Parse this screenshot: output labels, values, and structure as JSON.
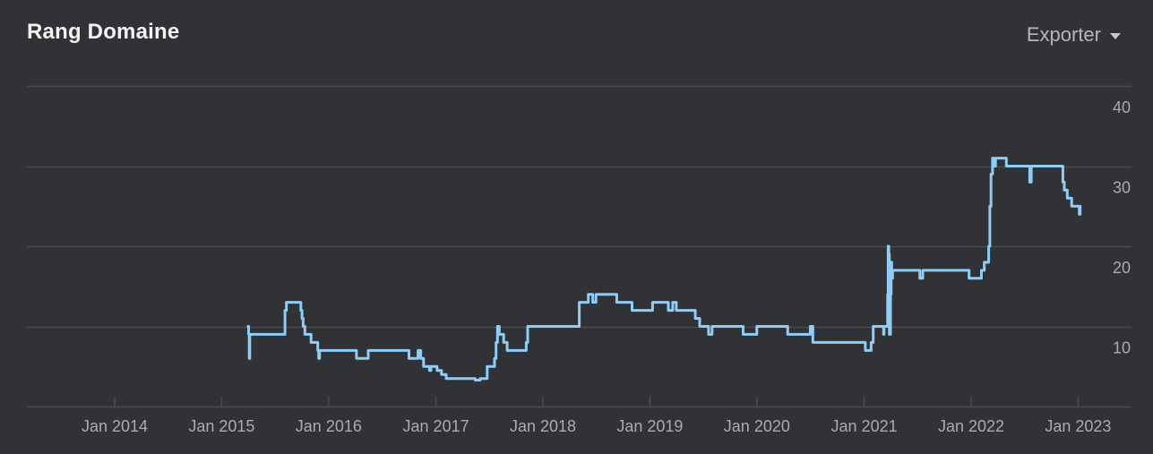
{
  "card": {
    "title": "Rang Domaine",
    "export_label": "Exporter"
  },
  "colors": {
    "background": "#313235",
    "line": "#8ecdf7",
    "grid": "#4a4b4f",
    "tick_text": "#a9abaf"
  },
  "chart_data": {
    "type": "line",
    "title": "Rang Domaine",
    "xlabel": "",
    "ylabel": "",
    "xlim": [
      "2013-03-01",
      "2023-03-01"
    ],
    "ylim": [
      0,
      40
    ],
    "x_tick_labels": [
      "Jan 2014",
      "Jan 2015",
      "Jan 2016",
      "Jan 2017",
      "Jan 2018",
      "Jan 2019",
      "Jan 2020",
      "Jan 2021",
      "Jan 2022",
      "Jan 2023"
    ],
    "y_ticks": [
      10,
      20,
      30,
      40
    ],
    "y_axis_side": "right",
    "grid": "horizontal",
    "legend": "none",
    "series": [
      {
        "style": "step",
        "points": [
          [
            "2015-04-01",
            10
          ],
          [
            "2015-04-03",
            9
          ],
          [
            "2015-04-05",
            6
          ],
          [
            "2015-04-07",
            9
          ],
          [
            "2015-08-01",
            9
          ],
          [
            "2015-08-05",
            12
          ],
          [
            "2015-08-10",
            13
          ],
          [
            "2015-09-25",
            13
          ],
          [
            "2015-09-28",
            12
          ],
          [
            "2015-10-02",
            11
          ],
          [
            "2015-10-06",
            10
          ],
          [
            "2015-10-12",
            9
          ],
          [
            "2015-10-25",
            9
          ],
          [
            "2015-11-02",
            8
          ],
          [
            "2015-11-20",
            8
          ],
          [
            "2015-11-25",
            7
          ],
          [
            "2015-11-28",
            6
          ],
          [
            "2015-12-01",
            7
          ],
          [
            "2016-04-01",
            7
          ],
          [
            "2016-04-05",
            6
          ],
          [
            "2016-05-10",
            6
          ],
          [
            "2016-05-15",
            7
          ],
          [
            "2016-09-25",
            7
          ],
          [
            "2016-10-01",
            6
          ],
          [
            "2016-10-25",
            6
          ],
          [
            "2016-11-01",
            7
          ],
          [
            "2016-11-10",
            6
          ],
          [
            "2016-11-20",
            5
          ],
          [
            "2016-12-10",
            4.5
          ],
          [
            "2016-12-15",
            5
          ],
          [
            "2017-01-05",
            4.5
          ],
          [
            "2017-01-20",
            4
          ],
          [
            "2017-02-05",
            3.5
          ],
          [
            "2017-05-01",
            3.5
          ],
          [
            "2017-05-15",
            3.3
          ],
          [
            "2017-06-01",
            3.5
          ],
          [
            "2017-06-20",
            3.5
          ],
          [
            "2017-06-25",
            5
          ],
          [
            "2017-07-15",
            5
          ],
          [
            "2017-07-20",
            6
          ],
          [
            "2017-07-25",
            8
          ],
          [
            "2017-07-30",
            10
          ],
          [
            "2017-08-05",
            9
          ],
          [
            "2017-08-20",
            8
          ],
          [
            "2017-09-01",
            7
          ],
          [
            "2017-11-01",
            7
          ],
          [
            "2017-11-05",
            8
          ],
          [
            "2017-11-10",
            10
          ],
          [
            "2018-05-01",
            10
          ],
          [
            "2018-05-05",
            13
          ],
          [
            "2018-06-01",
            13
          ],
          [
            "2018-06-05",
            14
          ],
          [
            "2018-06-20",
            13
          ],
          [
            "2018-07-01",
            14
          ],
          [
            "2018-09-05",
            14
          ],
          [
            "2018-09-10",
            13
          ],
          [
            "2018-10-25",
            13
          ],
          [
            "2018-11-01",
            12
          ],
          [
            "2019-01-05",
            12
          ],
          [
            "2019-01-10",
            13
          ],
          [
            "2019-03-01",
            13
          ],
          [
            "2019-03-05",
            12
          ],
          [
            "2019-03-20",
            13
          ],
          [
            "2019-04-01",
            12
          ],
          [
            "2019-06-01",
            12
          ],
          [
            "2019-06-05",
            11
          ],
          [
            "2019-06-20",
            10
          ],
          [
            "2019-07-15",
            10
          ],
          [
            "2019-07-20",
            9
          ],
          [
            "2019-08-01",
            10
          ],
          [
            "2019-11-10",
            10
          ],
          [
            "2019-11-15",
            9
          ],
          [
            "2019-12-25",
            9
          ],
          [
            "2020-01-01",
            10
          ],
          [
            "2020-04-10",
            10
          ],
          [
            "2020-04-15",
            9
          ],
          [
            "2020-06-25",
            9
          ],
          [
            "2020-07-01",
            10
          ],
          [
            "2020-07-10",
            8
          ],
          [
            "2021-01-01",
            8
          ],
          [
            "2021-01-05",
            7
          ],
          [
            "2021-01-20",
            7
          ],
          [
            "2021-01-25",
            8
          ],
          [
            "2021-02-01",
            10
          ],
          [
            "2021-03-05",
            10
          ],
          [
            "2021-03-08",
            9
          ],
          [
            "2021-03-10",
            10
          ],
          [
            "2021-03-20",
            10
          ],
          [
            "2021-03-22",
            14
          ],
          [
            "2021-03-24",
            20
          ],
          [
            "2021-03-26",
            19
          ],
          [
            "2021-03-28",
            9
          ],
          [
            "2021-04-01",
            14
          ],
          [
            "2021-04-03",
            18
          ],
          [
            "2021-04-05",
            16
          ],
          [
            "2021-04-08",
            17
          ],
          [
            "2021-07-05",
            17
          ],
          [
            "2021-07-10",
            16
          ],
          [
            "2021-07-20",
            17
          ],
          [
            "2021-12-20",
            17
          ],
          [
            "2021-12-25",
            16
          ],
          [
            "2022-02-01",
            16
          ],
          [
            "2022-02-05",
            17
          ],
          [
            "2022-02-15",
            18
          ],
          [
            "2022-02-25",
            18
          ],
          [
            "2022-03-02",
            20
          ],
          [
            "2022-03-06",
            25
          ],
          [
            "2022-03-10",
            29
          ],
          [
            "2022-03-15",
            31
          ],
          [
            "2022-03-20",
            30
          ],
          [
            "2022-03-25",
            31
          ],
          [
            "2022-04-20",
            31
          ],
          [
            "2022-05-01",
            30
          ],
          [
            "2022-07-15",
            30
          ],
          [
            "2022-07-20",
            28
          ],
          [
            "2022-07-25",
            30
          ],
          [
            "2022-11-05",
            30
          ],
          [
            "2022-11-10",
            28
          ],
          [
            "2022-11-15",
            27
          ],
          [
            "2022-11-25",
            26
          ],
          [
            "2022-12-10",
            25
          ],
          [
            "2023-01-01",
            25
          ],
          [
            "2023-01-05",
            24
          ],
          [
            "2023-01-08",
            25
          ]
        ]
      }
    ]
  }
}
